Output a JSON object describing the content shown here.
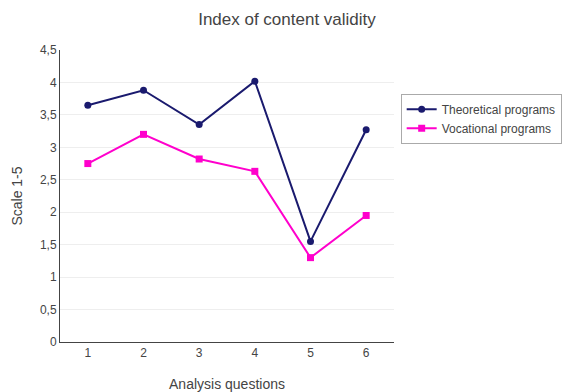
{
  "chart_data": {
    "type": "line",
    "title": "Index of content validity",
    "x_label": "Analysis questions",
    "y_label": "Scale 1-5",
    "x": [
      1,
      2,
      3,
      4,
      5,
      6
    ],
    "series": [
      {
        "name": "Theoretical programs",
        "color": "#1a1a6e",
        "marker": "circle",
        "values": [
          3.65,
          3.88,
          3.35,
          4.02,
          1.55,
          3.27
        ]
      },
      {
        "name": "Vocational programs",
        "color": "#ff00cc",
        "marker": "square",
        "values": [
          2.75,
          3.2,
          2.82,
          2.63,
          1.3,
          1.95
        ]
      }
    ],
    "xlim": [
      0.5,
      6.5
    ],
    "xticks": [
      1,
      2,
      3,
      4,
      5,
      6
    ],
    "ylim": [
      0,
      4.5
    ],
    "yticks": [
      0,
      {
        "value": 0.5,
        "label": "0,5"
      },
      1,
      {
        "value": 1.5,
        "label": "1,5"
      },
      2,
      {
        "value": 2.5,
        "label": "2,5"
      },
      3,
      {
        "value": 3.5,
        "label": "3,5"
      },
      4,
      {
        "value": 4.5,
        "label": "4,5"
      }
    ],
    "grid": "y",
    "legend": "right"
  }
}
